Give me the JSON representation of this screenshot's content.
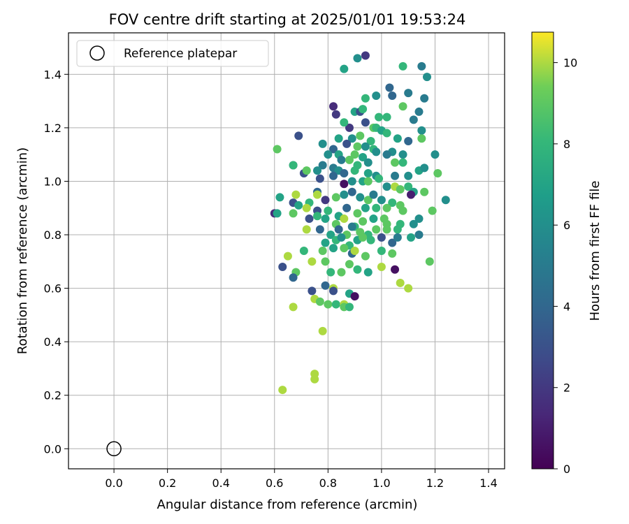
{
  "chart_data": {
    "type": "scatter",
    "title": "FOV centre drift starting at 2025/01/01 19:53:24",
    "xlabel": "Angular distance from reference (arcmin)",
    "ylabel": "Rotation from reference (arcmin)",
    "xlim": [
      -0.17,
      1.46
    ],
    "ylim": [
      -0.075,
      1.555
    ],
    "xticks": [
      0.0,
      0.2,
      0.4,
      0.6,
      0.8,
      1.0,
      1.2,
      1.4
    ],
    "yticks": [
      0.0,
      0.2,
      0.4,
      0.6,
      0.8,
      1.0,
      1.2,
      1.4
    ],
    "xtick_labels": [
      "0.0",
      "0.2",
      "0.4",
      "0.6",
      "0.8",
      "1.0",
      "1.2",
      "1.4"
    ],
    "ytick_labels": [
      "0.0",
      "0.2",
      "0.4",
      "0.6",
      "0.8",
      "1.0",
      "1.2",
      "1.4"
    ],
    "grid": true,
    "legend": {
      "position": "top-left",
      "entries": [
        {
          "label": "Reference platepar",
          "marker": "open-circle"
        }
      ]
    },
    "reference_point": {
      "x": 0.0,
      "y": 0.0
    },
    "colorbar": {
      "label": "Hours from first FF file",
      "range": [
        0,
        10.75
      ],
      "ticks": [
        0,
        2,
        4,
        6,
        8,
        10
      ],
      "tick_labels": [
        "0",
        "2",
        "4",
        "6",
        "8",
        "10"
      ],
      "colormap": "viridis"
    },
    "points": [
      [
        0.94,
        1.47,
        2
      ],
      [
        0.91,
        1.46,
        6
      ],
      [
        0.86,
        1.42,
        7
      ],
      [
        1.08,
        1.43,
        8
      ],
      [
        1.15,
        1.43,
        5
      ],
      [
        1.17,
        1.39,
        6
      ],
      [
        1.03,
        1.35,
        4
      ],
      [
        1.04,
        1.32,
        4
      ],
      [
        0.94,
        1.31,
        8
      ],
      [
        0.98,
        1.32,
        6
      ],
      [
        1.1,
        1.33,
        5
      ],
      [
        1.16,
        1.31,
        5
      ],
      [
        0.82,
        1.28,
        1.5
      ],
      [
        0.83,
        1.25,
        2
      ],
      [
        0.9,
        1.26,
        7
      ],
      [
        0.92,
        1.26,
        3
      ],
      [
        0.93,
        1.27,
        8
      ],
      [
        1.08,
        1.28,
        9
      ],
      [
        1.14,
        1.26,
        5
      ],
      [
        0.99,
        1.24,
        8
      ],
      [
        1.02,
        1.24,
        8
      ],
      [
        0.94,
        1.22,
        3
      ],
      [
        0.88,
        1.2,
        2
      ],
      [
        0.86,
        1.22,
        8
      ],
      [
        1.12,
        1.23,
        5
      ],
      [
        0.97,
        1.2,
        9
      ],
      [
        0.98,
        1.2,
        8
      ],
      [
        1.0,
        1.19,
        7
      ],
      [
        1.02,
        1.18,
        8
      ],
      [
        1.15,
        1.19,
        6
      ],
      [
        0.89,
        1.16,
        6
      ],
      [
        0.84,
        1.16,
        7
      ],
      [
        0.69,
        1.17,
        3
      ],
      [
        0.92,
        1.17,
        9
      ],
      [
        0.96,
        1.15,
        8
      ],
      [
        1.06,
        1.16,
        7
      ],
      [
        1.1,
        1.15,
        4
      ],
      [
        1.15,
        1.16,
        9
      ],
      [
        0.78,
        1.14,
        6
      ],
      [
        0.87,
        1.14,
        3
      ],
      [
        0.91,
        1.13,
        9
      ],
      [
        0.94,
        1.13,
        6
      ],
      [
        0.97,
        1.12,
        8
      ],
      [
        1.04,
        1.11,
        6
      ],
      [
        0.61,
        1.12,
        9
      ],
      [
        0.82,
        1.12,
        4
      ],
      [
        0.8,
        1.1,
        6
      ],
      [
        0.84,
        1.1,
        7
      ],
      [
        0.9,
        1.1,
        9
      ],
      [
        0.93,
        1.09,
        7
      ],
      [
        0.98,
        1.11,
        6
      ],
      [
        1.02,
        1.1,
        5
      ],
      [
        1.08,
        1.1,
        6
      ],
      [
        1.2,
        1.1,
        6
      ],
      [
        0.67,
        1.06,
        3
      ],
      [
        0.67,
        1.06,
        8
      ],
      [
        0.78,
        1.06,
        5
      ],
      [
        0.85,
        1.08,
        5
      ],
      [
        0.88,
        1.08,
        9
      ],
      [
        0.91,
        1.06,
        8
      ],
      [
        0.95,
        1.07,
        6
      ],
      [
        1.05,
        1.07,
        9
      ],
      [
        1.08,
        1.07,
        8
      ],
      [
        0.71,
        1.03,
        3
      ],
      [
        0.72,
        1.04,
        9
      ],
      [
        0.76,
        1.04,
        6
      ],
      [
        0.82,
        1.05,
        5
      ],
      [
        0.84,
        1.04,
        6
      ],
      [
        0.86,
        1.03,
        4
      ],
      [
        0.9,
        1.04,
        8
      ],
      [
        0.95,
        1.03,
        7
      ],
      [
        0.98,
        1.02,
        6
      ],
      [
        1.05,
        1.02,
        5
      ],
      [
        1.1,
        1.02,
        6
      ],
      [
        1.14,
        1.04,
        7
      ],
      [
        1.16,
        1.05,
        6
      ],
      [
        1.21,
        1.03,
        9
      ],
      [
        0.77,
        1.01,
        3
      ],
      [
        0.82,
        1.02,
        4
      ],
      [
        0.86,
        0.99,
        0.5
      ],
      [
        0.89,
        1.0,
        6
      ],
      [
        0.93,
        1.0,
        7
      ],
      [
        0.95,
        1.0,
        9
      ],
      [
        0.99,
        1.01,
        8
      ],
      [
        1.02,
        0.98,
        6
      ],
      [
        1.05,
        0.98,
        10
      ],
      [
        1.07,
        0.97,
        9
      ],
      [
        1.1,
        0.98,
        8
      ],
      [
        1.12,
        0.96,
        7
      ],
      [
        1.16,
        0.96,
        9
      ],
      [
        0.62,
        0.94,
        7
      ],
      [
        0.68,
        0.95,
        10
      ],
      [
        0.73,
        0.92,
        8
      ],
      [
        0.76,
        0.96,
        4
      ],
      [
        0.76,
        0.95,
        10
      ],
      [
        0.79,
        0.93,
        2
      ],
      [
        0.83,
        0.94,
        9
      ],
      [
        0.86,
        0.95,
        6
      ],
      [
        0.89,
        0.96,
        4
      ],
      [
        0.92,
        0.94,
        6
      ],
      [
        0.95,
        0.93,
        9
      ],
      [
        0.97,
        0.95,
        5
      ],
      [
        1.0,
        0.93,
        6
      ],
      [
        1.04,
        0.92,
        8
      ],
      [
        1.07,
        0.91,
        9
      ],
      [
        1.11,
        0.95,
        1
      ],
      [
        1.24,
        0.93,
        6
      ],
      [
        0.6,
        0.88,
        1.5
      ],
      [
        0.61,
        0.88,
        7
      ],
      [
        0.67,
        0.92,
        3
      ],
      [
        0.69,
        0.91,
        7
      ],
      [
        0.72,
        0.9,
        10
      ],
      [
        0.76,
        0.89,
        3
      ],
      [
        0.8,
        0.89,
        8
      ],
      [
        0.84,
        0.87,
        7
      ],
      [
        0.87,
        0.9,
        4
      ],
      [
        0.91,
        0.88,
        9
      ],
      [
        0.94,
        0.9,
        7
      ],
      [
        0.98,
        0.9,
        8
      ],
      [
        1.02,
        0.9,
        9
      ],
      [
        1.08,
        0.89,
        9
      ],
      [
        1.14,
        0.86,
        6
      ],
      [
        1.19,
        0.89,
        9
      ],
      [
        0.67,
        0.88,
        9
      ],
      [
        0.73,
        0.86,
        3
      ],
      [
        0.76,
        0.87,
        8
      ],
      [
        0.79,
        0.86,
        7
      ],
      [
        0.83,
        0.84,
        9
      ],
      [
        0.86,
        0.86,
        10
      ],
      [
        0.9,
        0.83,
        8
      ],
      [
        0.93,
        0.85,
        9
      ],
      [
        0.97,
        0.86,
        7
      ],
      [
        1.01,
        0.86,
        9
      ],
      [
        1.02,
        0.84,
        9
      ],
      [
        1.07,
        0.84,
        8
      ],
      [
        1.12,
        0.84,
        6
      ],
      [
        0.72,
        0.82,
        10
      ],
      [
        0.77,
        0.82,
        4
      ],
      [
        0.81,
        0.8,
        7
      ],
      [
        0.84,
        0.82,
        4
      ],
      [
        0.87,
        0.8,
        9
      ],
      [
        0.89,
        0.83,
        5
      ],
      [
        0.92,
        0.81,
        9
      ],
      [
        0.95,
        0.8,
        8
      ],
      [
        0.98,
        0.82,
        9
      ],
      [
        1.02,
        0.82,
        9
      ],
      [
        1.06,
        0.82,
        8
      ],
      [
        1.11,
        0.79,
        7
      ],
      [
        1.14,
        0.8,
        5
      ],
      [
        0.79,
        0.77,
        7
      ],
      [
        0.83,
        0.78,
        8
      ],
      [
        0.85,
        0.79,
        6
      ],
      [
        0.88,
        0.76,
        8
      ],
      [
        0.91,
        0.78,
        7
      ],
      [
        0.93,
        0.79,
        9
      ],
      [
        0.96,
        0.78,
        8
      ],
      [
        1.0,
        0.79,
        3
      ],
      [
        1.04,
        0.77,
        4
      ],
      [
        1.06,
        0.79,
        5
      ],
      [
        0.65,
        0.72,
        10
      ],
      [
        0.71,
        0.74,
        8
      ],
      [
        0.78,
        0.74,
        9
      ],
      [
        0.82,
        0.75,
        7
      ],
      [
        0.86,
        0.75,
        9
      ],
      [
        0.89,
        0.73,
        4
      ],
      [
        0.9,
        0.74,
        10
      ],
      [
        0.94,
        0.72,
        9
      ],
      [
        1.0,
        0.74,
        8
      ],
      [
        1.04,
        0.73,
        9
      ],
      [
        1.18,
        0.7,
        9
      ],
      [
        0.63,
        0.68,
        3
      ],
      [
        0.68,
        0.66,
        9
      ],
      [
        0.74,
        0.7,
        10
      ],
      [
        0.79,
        0.7,
        9
      ],
      [
        0.81,
        0.66,
        8
      ],
      [
        0.85,
        0.66,
        9
      ],
      [
        0.88,
        0.69,
        9
      ],
      [
        0.91,
        0.67,
        8
      ],
      [
        0.95,
        0.66,
        7
      ],
      [
        1.0,
        0.68,
        10
      ],
      [
        1.05,
        0.67,
        0.5
      ],
      [
        0.67,
        0.64,
        4
      ],
      [
        0.79,
        0.61,
        4
      ],
      [
        0.82,
        0.6,
        10
      ],
      [
        0.74,
        0.59,
        3
      ],
      [
        0.82,
        0.59,
        3
      ],
      [
        0.88,
        0.58,
        7
      ],
      [
        0.9,
        0.57,
        0.5
      ],
      [
        1.07,
        0.62,
        10
      ],
      [
        1.1,
        0.6,
        10
      ],
      [
        0.67,
        0.53,
        10
      ],
      [
        0.75,
        0.56,
        10
      ],
      [
        0.77,
        0.55,
        9
      ],
      [
        0.8,
        0.54,
        9
      ],
      [
        0.83,
        0.54,
        8
      ],
      [
        0.86,
        0.54,
        10
      ],
      [
        0.86,
        0.53,
        9
      ],
      [
        0.88,
        0.53,
        8
      ],
      [
        0.78,
        0.44,
        10
      ],
      [
        0.75,
        0.28,
        10
      ],
      [
        0.75,
        0.26,
        10
      ],
      [
        0.63,
        0.22,
        10
      ]
    ]
  }
}
